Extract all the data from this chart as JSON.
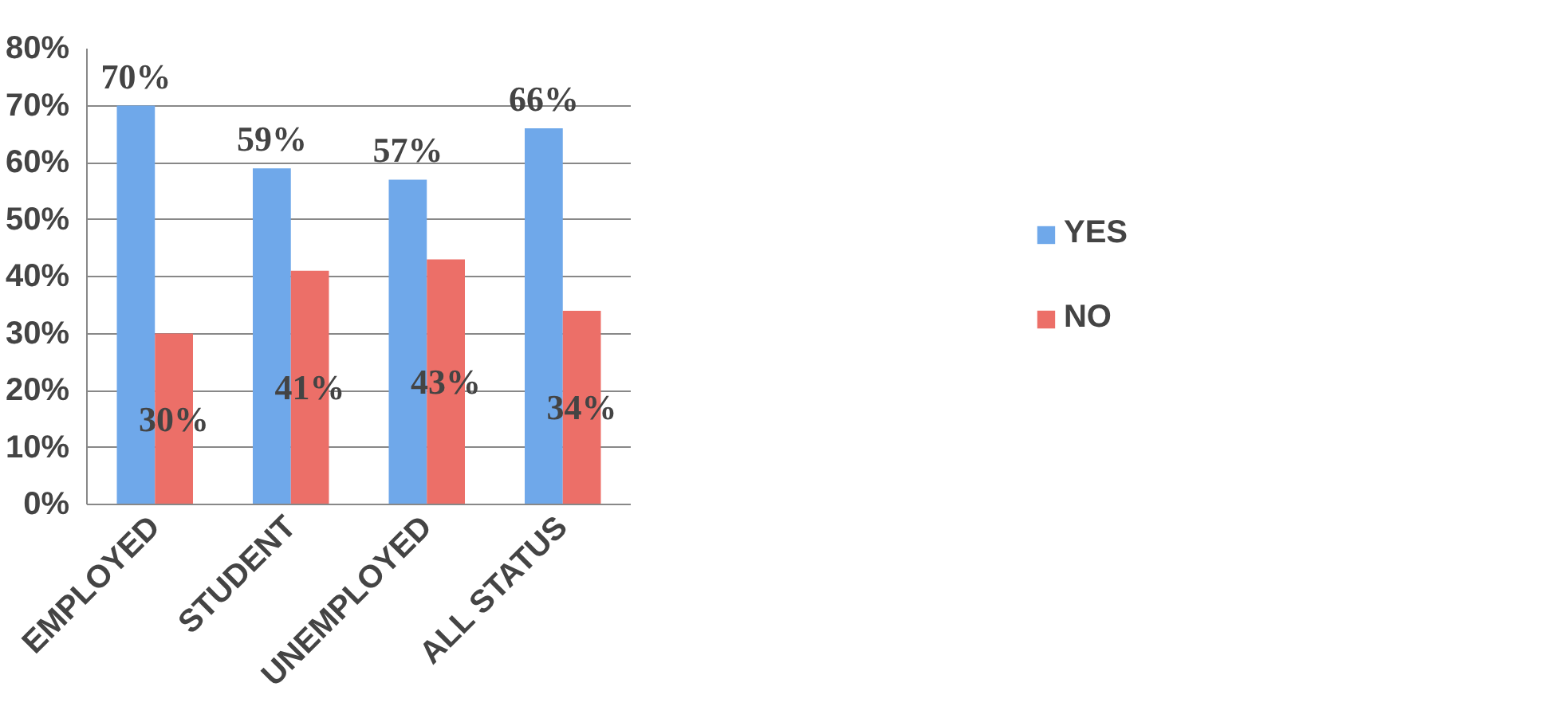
{
  "chart_data": {
    "type": "bar",
    "categories": [
      "EMPLOYED",
      "STUDENT",
      "UNEMPLOYED",
      "ALL STATUS"
    ],
    "series": [
      {
        "name": "YES",
        "color": "#6fa8ea",
        "values": [
          70,
          59,
          57,
          66
        ],
        "value_labels": [
          "70%",
          "59%",
          "57%",
          "66%"
        ]
      },
      {
        "name": "NO",
        "color": "#ec6f68",
        "values": [
          30,
          41,
          43,
          34
        ],
        "value_labels": [
          "30%",
          "41%",
          "43%",
          "34%"
        ]
      }
    ],
    "ylim": [
      0,
      80
    ],
    "yticks": [
      {
        "value": 0,
        "label": "0%"
      },
      {
        "value": 10,
        "label": "10%"
      },
      {
        "value": 20,
        "label": "20%"
      },
      {
        "value": 30,
        "label": "30%"
      },
      {
        "value": 40,
        "label": "40%"
      },
      {
        "value": 50,
        "label": "50%"
      },
      {
        "value": 60,
        "label": "60%"
      },
      {
        "value": 70,
        "label": "70%"
      },
      {
        "value": 80,
        "label": "80%"
      }
    ],
    "grid": "y",
    "legend": "right"
  }
}
